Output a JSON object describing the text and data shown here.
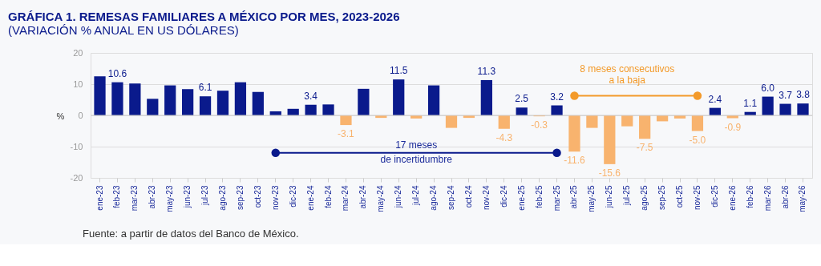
{
  "chart_data": {
    "type": "bar",
    "title": "GRÁFICA 1. REMESAS FAMILIARES A MÉXICO POR MES, 2023-2026",
    "subtitle": "(VARIACIÓN % ANUAL EN US DÓLARES)",
    "ylabel": "%",
    "categories": [
      "ene-23",
      "feb-23",
      "mar-23",
      "abr-23",
      "may-23",
      "jun-23",
      "jul-23",
      "ago-23",
      "sep-23",
      "oct-23",
      "nov-23",
      "dic-23",
      "ene-24",
      "feb-24",
      "mar-24",
      "abr-24",
      "may-24",
      "jun-24",
      "jul-24",
      "ago-24",
      "sep-24",
      "oct-24",
      "nov-24",
      "dic-24",
      "ene-25",
      "feb-25",
      "mar-25",
      "abr-25",
      "may-25",
      "jun-25",
      "jul-25",
      "ago-25",
      "sep-25",
      "oct-25",
      "nov-25",
      "dic-25",
      "ene-26",
      "feb-26",
      "mar-26",
      "abr-26",
      "may-26"
    ],
    "values": [
      12.5,
      10.6,
      10.2,
      5.3,
      9.6,
      8.4,
      6.1,
      7.9,
      10.6,
      7.5,
      1.3,
      2.1,
      3.4,
      3.5,
      -3.1,
      8.5,
      -0.8,
      11.5,
      -1.0,
      9.6,
      -4.0,
      -0.8,
      11.3,
      -4.3,
      2.5,
      -0.3,
      3.2,
      -11.6,
      -4.0,
      -15.6,
      -3.5,
      -7.5,
      -1.9,
      -1.0,
      -5.0,
      2.4,
      -0.9,
      1.1,
      6.0,
      3.7,
      3.8
    ],
    "colors": [
      "#0a1a8c",
      "#0a1a8c",
      "#0a1a8c",
      "#0a1a8c",
      "#0a1a8c",
      "#0a1a8c",
      "#0a1a8c",
      "#0a1a8c",
      "#0a1a8c",
      "#0a1a8c",
      "#0a1a8c",
      "#0a1a8c",
      "#0a1a8c",
      "#0a1a8c",
      "#f8b36e",
      "#0a1a8c",
      "#f8b36e",
      "#0a1a8c",
      "#f8b36e",
      "#0a1a8c",
      "#f8b36e",
      "#f8b36e",
      "#0a1a8c",
      "#f8b36e",
      "#0a1a8c",
      "#f8b36e",
      "#0a1a8c",
      "#f8b36e",
      "#f8b36e",
      "#f8b36e",
      "#f8b36e",
      "#f8b36e",
      "#f8b36e",
      "#f8b36e",
      "#f8b36e",
      "#0a1a8c",
      "#f8b36e",
      "#0a1a8c",
      "#0a1a8c",
      "#0a1a8c",
      "#0a1a8c"
    ],
    "value_labels": [
      null,
      "10.6",
      null,
      null,
      null,
      null,
      "6.1",
      null,
      null,
      null,
      null,
      null,
      "3.4",
      null,
      "-3.1",
      null,
      null,
      "11.5",
      null,
      null,
      null,
      null,
      "11.3",
      "-4.3",
      "2.5",
      "-0.3",
      "3.2",
      "-11.6",
      null,
      "-15.6",
      null,
      "-7.5",
      null,
      null,
      "-5.0",
      "2.4",
      "-0.9",
      "1.1",
      "6.0",
      "3.7",
      "3.8"
    ],
    "ylim": [
      -20,
      20
    ],
    "yticks": [
      -20,
      -10,
      0,
      10,
      20
    ],
    "grid": "y",
    "annotations": [
      "17 meses\nde incertidumbre",
      "8 meses consecutivos\na la baja",
      "Fuente: a partir de datos del Banco de México."
    ]
  }
}
